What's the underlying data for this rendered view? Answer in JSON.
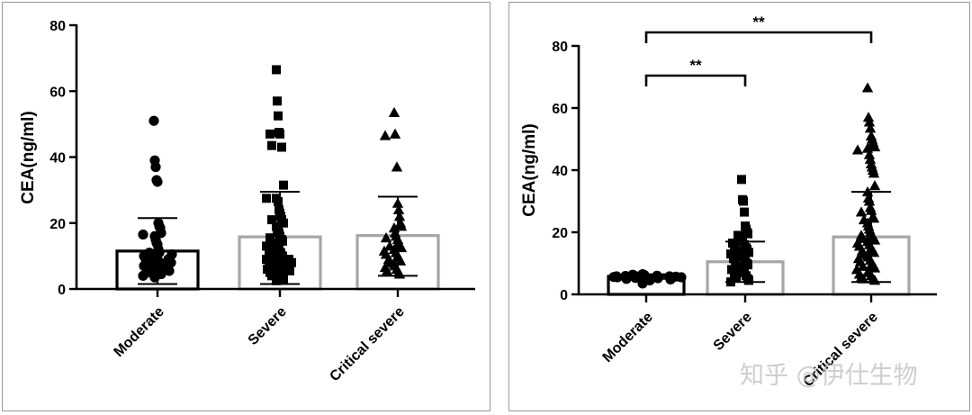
{
  "colors": {
    "bar_black": "#000000",
    "bar_gray": "#a6a6a6",
    "marker": "#000000"
  },
  "watermark": "知乎 @伊仕生物",
  "chart_data": [
    {
      "type": "bar",
      "panel": "left",
      "ylabel": "CEA(ng/ml)",
      "ylim": [
        0,
        80
      ],
      "yticks": [
        "0",
        "20",
        "40",
        "60",
        "80"
      ],
      "categories": [
        "Moderate",
        "Severe",
        "Critical severe"
      ],
      "marker_shapes": [
        "circle",
        "square",
        "triangle"
      ],
      "bar_styles": [
        "black",
        "gray",
        "gray"
      ],
      "means": [
        11.5,
        15.8,
        16.2
      ],
      "sd_upper": [
        21.5,
        29.5,
        28
      ],
      "sd_lower": [
        1.5,
        1.5,
        4
      ],
      "points": [
        [
          51,
          39,
          37,
          33,
          32.5,
          20,
          19,
          18.5,
          17,
          16.5,
          16,
          15,
          14,
          13.5,
          12,
          11,
          11,
          10.5,
          10,
          10,
          9.5,
          9,
          9,
          8.5,
          8,
          8,
          7.5,
          7,
          7,
          6.5,
          6,
          6,
          5.5,
          5,
          5,
          4.5,
          4,
          3.5
        ],
        [
          66.5,
          57,
          52.5,
          47.5,
          47,
          47,
          43,
          43.5,
          31.5,
          27.5,
          27.5,
          26.5,
          24,
          23,
          22,
          21,
          21,
          20,
          19,
          18,
          17.5,
          17,
          16,
          15.5,
          15,
          14.5,
          14,
          13.5,
          13,
          12.5,
          12,
          11.5,
          11,
          10.5,
          10,
          10,
          9.5,
          9,
          9,
          8.5,
          8,
          8,
          7.5,
          7,
          7,
          6.5,
          6,
          6,
          5.5,
          5,
          5,
          4.5,
          4,
          3,
          2.5
        ],
        [
          53.5,
          47,
          46.5,
          37,
          26,
          24,
          22,
          20,
          19,
          18.5,
          17,
          16,
          15.5,
          15,
          14,
          13.5,
          13,
          12.5,
          12,
          11.5,
          11,
          10.5,
          10,
          9.5,
          9,
          8.5,
          8,
          7.5,
          7,
          6.5,
          6,
          5.5,
          5,
          4.5
        ]
      ]
    },
    {
      "type": "bar",
      "panel": "right",
      "ylabel": "CEA(ng/ml)",
      "ylim": [
        0,
        80
      ],
      "yticks": [
        "0",
        "20",
        "40",
        "60",
        "80"
      ],
      "categories": [
        "Moderate",
        "Severe",
        "Critical severe"
      ],
      "marker_shapes": [
        "circle",
        "square",
        "triangle"
      ],
      "bar_styles": [
        "black",
        "gray",
        "gray"
      ],
      "means": [
        5.8,
        10.5,
        18.5
      ],
      "sd_upper": [
        6.5,
        17,
        33
      ],
      "sd_lower": [
        5,
        4,
        4
      ],
      "significance": [
        {
          "from": 0,
          "to": 1,
          "label": "**"
        },
        {
          "from": 0,
          "to": 2,
          "label": "**"
        }
      ],
      "points": [
        [
          6.5,
          6.3,
          6.2,
          6,
          6,
          5.9,
          5.8,
          5.8,
          5.7,
          5.6,
          5.5,
          5.5,
          5.4,
          5.3,
          5.2,
          5,
          4.8,
          4.5,
          3.5
        ],
        [
          37,
          30.5,
          30,
          26.5,
          22,
          21,
          20,
          19.5,
          19,
          18,
          17,
          16.5,
          16,
          15.5,
          15,
          14.5,
          14,
          13.5,
          13,
          12.5,
          12,
          11.5,
          11,
          10.5,
          10,
          9.5,
          9,
          8.5,
          8,
          7.5,
          7,
          6.5,
          6,
          5.5,
          5,
          4.5,
          4
        ],
        [
          66.5,
          57,
          55.5,
          53.5,
          51,
          50,
          49,
          48,
          47.5,
          47,
          46.5,
          45,
          43.5,
          42,
          41,
          40,
          39,
          35,
          33,
          31,
          30,
          28,
          27,
          26.5,
          25,
          24.5,
          24,
          23,
          22,
          21,
          20,
          19.5,
          19,
          18.5,
          18,
          17.5,
          17,
          16.5,
          16,
          15.5,
          15,
          14.5,
          14,
          13.5,
          13,
          12.5,
          12,
          11.5,
          11,
          10.5,
          10,
          9.5,
          9,
          8.5,
          8,
          7.5,
          7,
          6.5,
          6,
          5.5,
          5,
          5,
          4.5
        ]
      ]
    }
  ]
}
